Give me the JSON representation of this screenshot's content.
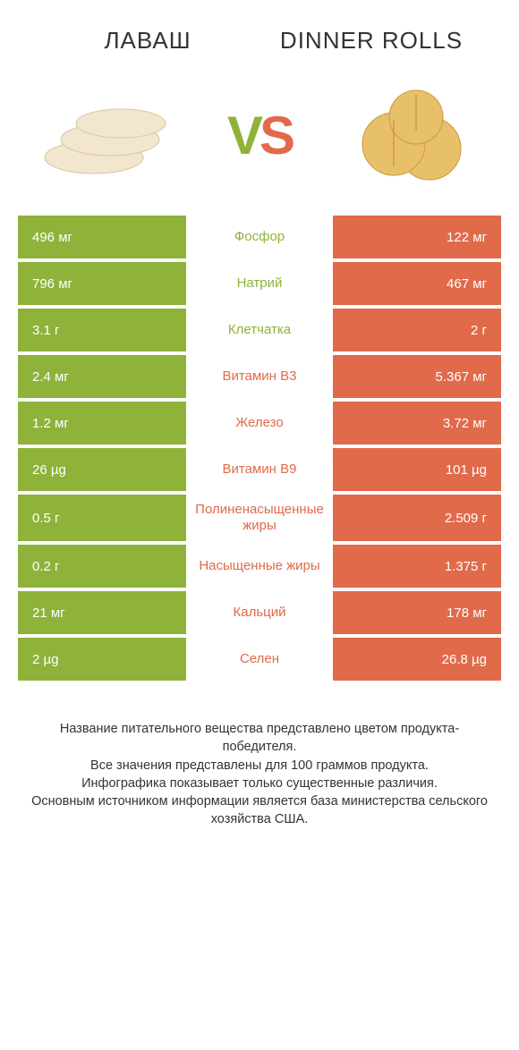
{
  "colors": {
    "green": "#8fb23b",
    "orange": "#e06a4a",
    "text": "#333333",
    "white": "#ffffff"
  },
  "header": {
    "left_title": "ЛАВАШ",
    "right_title": "DINNER ROLLS",
    "vs_v": "V",
    "vs_s": "S"
  },
  "rows": [
    {
      "left": "496 мг",
      "label": "Фосфор",
      "right": "122 мг",
      "winner": "left"
    },
    {
      "left": "796 мг",
      "label": "Натрий",
      "right": "467 мг",
      "winner": "left"
    },
    {
      "left": "3.1 г",
      "label": "Клетчатка",
      "right": "2 г",
      "winner": "left"
    },
    {
      "left": "2.4 мг",
      "label": "Витамин B3",
      "right": "5.367 мг",
      "winner": "right"
    },
    {
      "left": "1.2 мг",
      "label": "Железо",
      "right": "3.72 мг",
      "winner": "right"
    },
    {
      "left": "26 µg",
      "label": "Витамин B9",
      "right": "101 µg",
      "winner": "right"
    },
    {
      "left": "0.5 г",
      "label": "Полиненасыщенные жиры",
      "right": "2.509 г",
      "winner": "right"
    },
    {
      "left": "0.2 г",
      "label": "Насыщенные жиры",
      "right": "1.375 г",
      "winner": "right"
    },
    {
      "left": "21 мг",
      "label": "Кальций",
      "right": "178 мг",
      "winner": "right"
    },
    {
      "left": "2 µg",
      "label": "Селен",
      "right": "26.8 µg",
      "winner": "right"
    }
  ],
  "footer": {
    "line1": "Название питательного вещества представлено цветом продукта-победителя.",
    "line2": "Все значения представлены для 100 граммов продукта.",
    "line3": "Инфографика показывает только существенные различия.",
    "line4": "Основным источником информации является база министерства сельского хозяйства США."
  }
}
